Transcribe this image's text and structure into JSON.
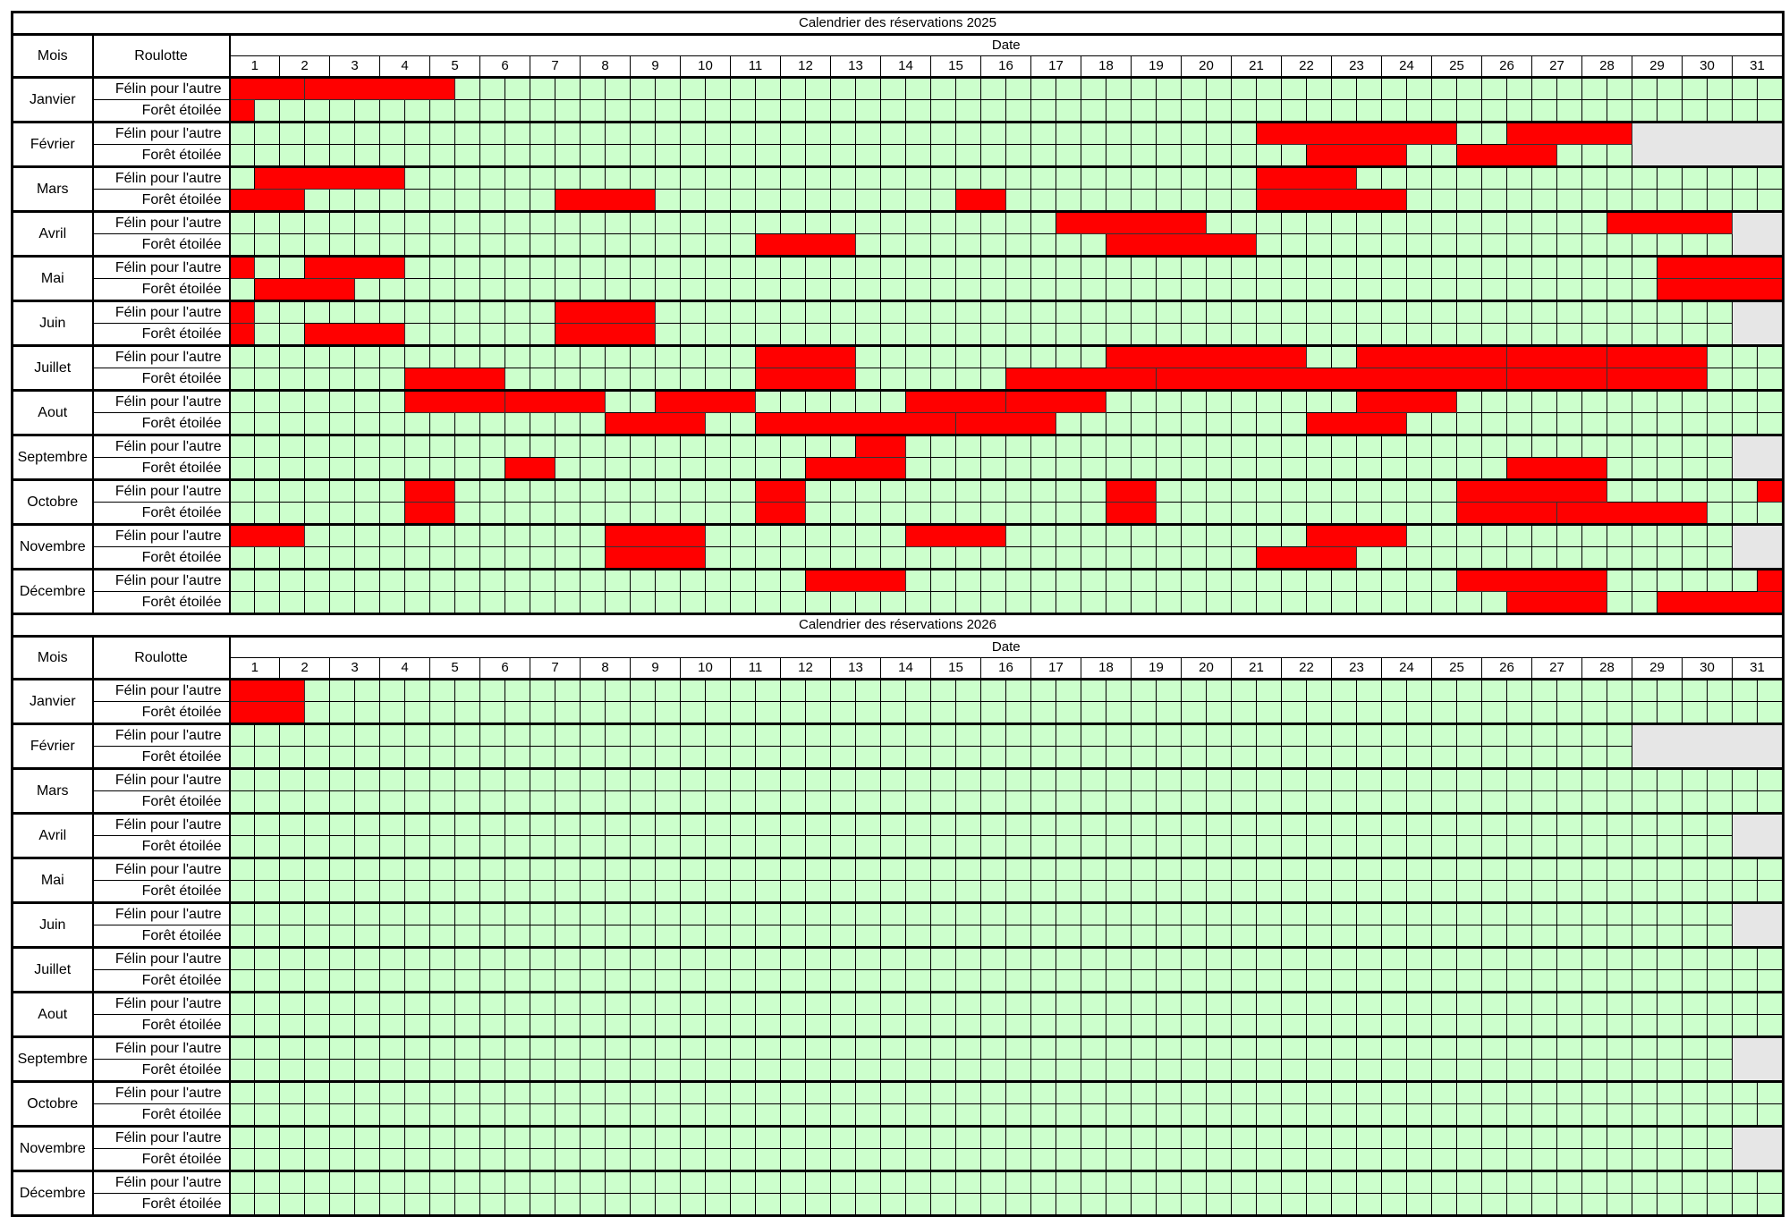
{
  "labels": {
    "mois": "Mois",
    "roulotte": "Roulotte",
    "date": "Date"
  },
  "day_numbers": [
    1,
    2,
    3,
    4,
    5,
    6,
    7,
    8,
    9,
    10,
    11,
    12,
    13,
    14,
    15,
    16,
    17,
    18,
    19,
    20,
    21,
    22,
    23,
    24,
    25,
    26,
    27,
    28,
    29,
    30,
    31
  ],
  "note": "bookings are [first half-day slot, last half-day slot], slot 1 = day 1 morning, slot 62 = day 31 afternoon",
  "colors": {
    "free": "#ccffcc",
    "booked": "#ff0000",
    "unavailable": "#e6e6e6"
  },
  "years": [
    {
      "title": "Calendrier des réservations 2025",
      "months": [
        {
          "name": "Janvier",
          "days": 31,
          "rows": [
            {
              "roulotte": "Félin pour l'autre",
              "bookings": [
                [
                  1,
                  3
                ],
                [
                  4,
                  9
                ]
              ]
            },
            {
              "roulotte": "Forêt étoilée",
              "bookings": [
                [
                  1,
                  1
                ]
              ]
            }
          ]
        },
        {
          "name": "Février",
          "days": 28,
          "rows": [
            {
              "roulotte": "Félin pour l'autre",
              "bookings": [
                [
                  42,
                  49
                ],
                [
                  52,
                  56
                ]
              ]
            },
            {
              "roulotte": "Forêt étoilée",
              "bookings": [
                [
                  44,
                  47
                ],
                [
                  50,
                  53
                ]
              ]
            }
          ]
        },
        {
          "name": "Mars",
          "days": 31,
          "rows": [
            {
              "roulotte": "Félin pour l'autre",
              "bookings": [
                [
                  2,
                  7
                ],
                [
                  42,
                  45
                ]
              ]
            },
            {
              "roulotte": "Forêt étoilée",
              "bookings": [
                [
                  1,
                  3
                ],
                [
                  14,
                  17
                ],
                [
                  30,
                  31
                ],
                [
                  42,
                  47
                ]
              ]
            }
          ]
        },
        {
          "name": "Avril",
          "days": 30,
          "rows": [
            {
              "roulotte": "Félin pour l'autre",
              "bookings": [
                [
                  34,
                  39
                ],
                [
                  56,
                  60
                ]
              ]
            },
            {
              "roulotte": "Forêt étoilée",
              "bookings": [
                [
                  22,
                  25
                ],
                [
                  36,
                  41
                ]
              ]
            }
          ]
        },
        {
          "name": "Mai",
          "days": 31,
          "rows": [
            {
              "roulotte": "Félin pour l'autre",
              "bookings": [
                [
                  1,
                  1
                ],
                [
                  4,
                  7
                ],
                [
                  58,
                  62
                ]
              ]
            },
            {
              "roulotte": "Forêt étoilée",
              "bookings": [
                [
                  2,
                  5
                ],
                [
                  58,
                  62
                ]
              ]
            }
          ]
        },
        {
          "name": "Juin",
          "days": 30,
          "rows": [
            {
              "roulotte": "Félin pour l'autre",
              "bookings": [
                [
                  1,
                  1
                ],
                [
                  14,
                  17
                ]
              ]
            },
            {
              "roulotte": "Forêt étoilée",
              "bookings": [
                [
                  1,
                  1
                ],
                [
                  4,
                  7
                ],
                [
                  14,
                  17
                ]
              ]
            }
          ]
        },
        {
          "name": "Juillet",
          "days": 31,
          "rows": [
            {
              "roulotte": "Félin pour l'autre",
              "bookings": [
                [
                  22,
                  25
                ],
                [
                  36,
                  43
                ],
                [
                  46,
                  51
                ],
                [
                  52,
                  55
                ],
                [
                  56,
                  59
                ]
              ]
            },
            {
              "roulotte": "Forêt étoilée",
              "bookings": [
                [
                  8,
                  11
                ],
                [
                  22,
                  25
                ],
                [
                  32,
                  37
                ],
                [
                  38,
                  51
                ],
                [
                  52,
                  55
                ],
                [
                  56,
                  59
                ]
              ]
            }
          ]
        },
        {
          "name": "Aout",
          "days": 31,
          "rows": [
            {
              "roulotte": "Félin pour l'autre",
              "bookings": [
                [
                  8,
                  11
                ],
                [
                  12,
                  15
                ],
                [
                  18,
                  21
                ],
                [
                  28,
                  31
                ],
                [
                  32,
                  35
                ],
                [
                  46,
                  49
                ]
              ]
            },
            {
              "roulotte": "Forêt étoilée",
              "bookings": [
                [
                  16,
                  19
                ],
                [
                  22,
                  29
                ],
                [
                  30,
                  33
                ],
                [
                  44,
                  47
                ]
              ]
            }
          ]
        },
        {
          "name": "Septembre",
          "days": 30,
          "rows": [
            {
              "roulotte": "Félin pour l'autre",
              "bookings": [
                [
                  26,
                  27
                ]
              ]
            },
            {
              "roulotte": "Forêt étoilée",
              "bookings": [
                [
                  12,
                  13
                ],
                [
                  24,
                  27
                ],
                [
                  52,
                  55
                ]
              ]
            }
          ]
        },
        {
          "name": "Octobre",
          "days": 31,
          "rows": [
            {
              "roulotte": "Félin pour l'autre",
              "bookings": [
                [
                  8,
                  9
                ],
                [
                  22,
                  23
                ],
                [
                  36,
                  37
                ],
                [
                  50,
                  55
                ],
                [
                  62,
                  62
                ]
              ]
            },
            {
              "roulotte": "Forêt étoilée",
              "bookings": [
                [
                  8,
                  9
                ],
                [
                  22,
                  23
                ],
                [
                  36,
                  37
                ],
                [
                  50,
                  53
                ],
                [
                  54,
                  59
                ]
              ]
            }
          ]
        },
        {
          "name": "Novembre",
          "days": 30,
          "rows": [
            {
              "roulotte": "Félin pour l'autre",
              "bookings": [
                [
                  1,
                  3
                ],
                [
                  16,
                  19
                ],
                [
                  28,
                  31
                ],
                [
                  44,
                  47
                ]
              ]
            },
            {
              "roulotte": "Forêt étoilée",
              "bookings": [
                [
                  16,
                  19
                ],
                [
                  42,
                  45
                ]
              ]
            }
          ]
        },
        {
          "name": "Décembre",
          "days": 31,
          "rows": [
            {
              "roulotte": "Félin pour l'autre",
              "bookings": [
                [
                  24,
                  27
                ],
                [
                  50,
                  55
                ],
                [
                  62,
                  62
                ]
              ]
            },
            {
              "roulotte": "Forêt étoilée",
              "bookings": [
                [
                  52,
                  55
                ],
                [
                  58,
                  62
                ]
              ]
            }
          ]
        }
      ]
    },
    {
      "title": "Calendrier des réservations 2026",
      "months": [
        {
          "name": "Janvier",
          "days": 31,
          "rows": [
            {
              "roulotte": "Félin pour l'autre",
              "bookings": [
                [
                  1,
                  3
                ]
              ]
            },
            {
              "roulotte": "Forêt étoilée",
              "bookings": [
                [
                  1,
                  3
                ]
              ]
            }
          ]
        },
        {
          "name": "Février",
          "days": 28,
          "rows": [
            {
              "roulotte": "Félin pour l'autre",
              "bookings": []
            },
            {
              "roulotte": "Forêt étoilée",
              "bookings": []
            }
          ]
        },
        {
          "name": "Mars",
          "days": 31,
          "rows": [
            {
              "roulotte": "Félin pour l'autre",
              "bookings": []
            },
            {
              "roulotte": "Forêt étoilée",
              "bookings": []
            }
          ]
        },
        {
          "name": "Avril",
          "days": 30,
          "rows": [
            {
              "roulotte": "Félin pour l'autre",
              "bookings": []
            },
            {
              "roulotte": "Forêt étoilée",
              "bookings": []
            }
          ]
        },
        {
          "name": "Mai",
          "days": 31,
          "rows": [
            {
              "roulotte": "Félin pour l'autre",
              "bookings": []
            },
            {
              "roulotte": "Forêt étoilée",
              "bookings": []
            }
          ]
        },
        {
          "name": "Juin",
          "days": 30,
          "rows": [
            {
              "roulotte": "Félin pour l'autre",
              "bookings": []
            },
            {
              "roulotte": "Forêt étoilée",
              "bookings": []
            }
          ]
        },
        {
          "name": "Juillet",
          "days": 31,
          "rows": [
            {
              "roulotte": "Félin pour l'autre",
              "bookings": []
            },
            {
              "roulotte": "Forêt étoilée",
              "bookings": []
            }
          ]
        },
        {
          "name": "Aout",
          "days": 31,
          "rows": [
            {
              "roulotte": "Félin pour l'autre",
              "bookings": []
            },
            {
              "roulotte": "Forêt étoilée",
              "bookings": []
            }
          ]
        },
        {
          "name": "Septembre",
          "days": 30,
          "rows": [
            {
              "roulotte": "Félin pour l'autre",
              "bookings": []
            },
            {
              "roulotte": "Forêt étoilée",
              "bookings": []
            }
          ]
        },
        {
          "name": "Octobre",
          "days": 31,
          "rows": [
            {
              "roulotte": "Félin pour l'autre",
              "bookings": []
            },
            {
              "roulotte": "Forêt étoilée",
              "bookings": []
            }
          ]
        },
        {
          "name": "Novembre",
          "days": 30,
          "rows": [
            {
              "roulotte": "Félin pour l'autre",
              "bookings": []
            },
            {
              "roulotte": "Forêt étoilée",
              "bookings": []
            }
          ]
        },
        {
          "name": "Décembre",
          "days": 31,
          "rows": [
            {
              "roulotte": "Félin pour l'autre",
              "bookings": []
            },
            {
              "roulotte": "Forêt étoilée",
              "bookings": []
            }
          ]
        }
      ]
    }
  ]
}
